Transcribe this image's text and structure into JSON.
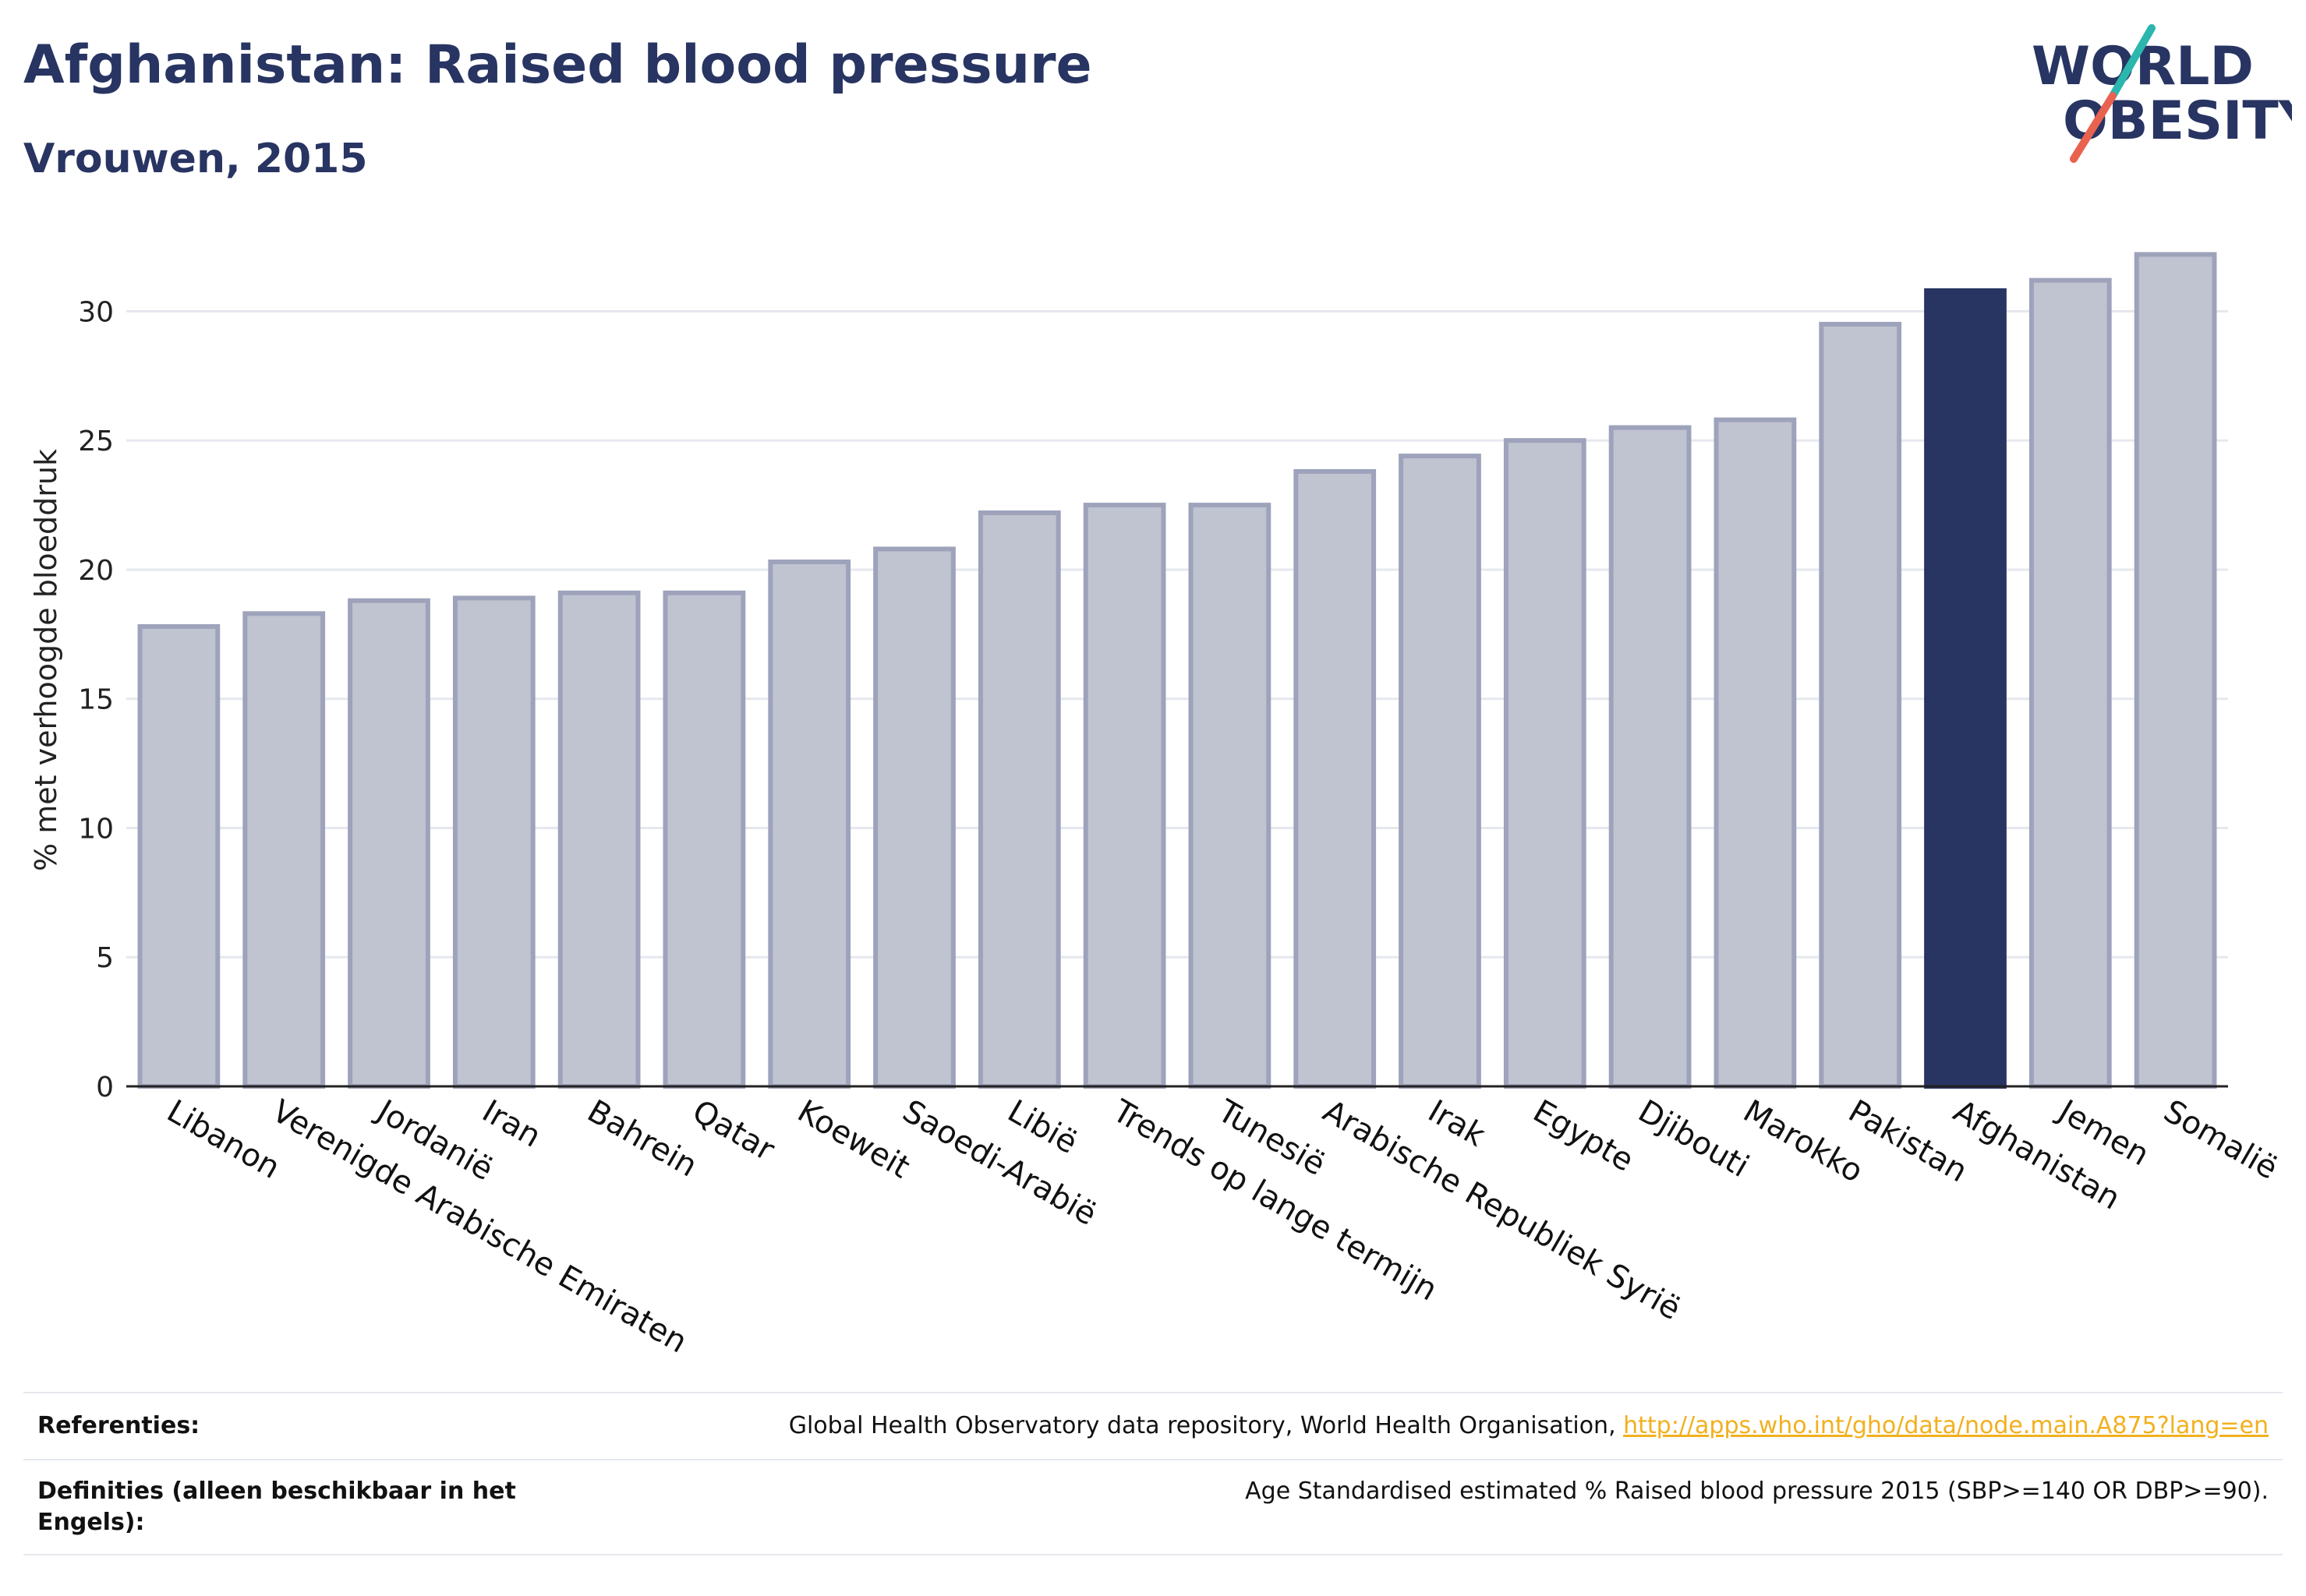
{
  "header": {
    "title": "Afghanistan: Raised blood pressure",
    "subtitle": "Vrouwen, 2015"
  },
  "logo": {
    "line1": "WORLD",
    "line2": "OBESITY",
    "colors": {
      "text": "#283462",
      "slash_top": "#2bb6ae",
      "slash_bottom": "#e8624f"
    }
  },
  "chart_data": {
    "type": "bar",
    "ylabel": "% met verhoogde bloeddruk",
    "xlabel": "",
    "ylim": [
      0,
      33
    ],
    "yticks": [
      0,
      5,
      10,
      15,
      20,
      25,
      30
    ],
    "grid": true,
    "highlight": "Afghanistan",
    "colors": {
      "bar": "#c0c3d0",
      "bar_edge": "#9ea3bb",
      "highlight": "#283462",
      "grid": "#e6e8ef",
      "axis": "#222222"
    },
    "categories": [
      "Libanon",
      "Verenigde Arabische Emiraten",
      "Jordanië",
      "Iran",
      "Bahrein",
      "Qatar",
      "Koeweit",
      "Saoedi-Arabië",
      "Libië",
      "Trends op lange termijn",
      "Tunesië",
      "Arabische Republiek Syrië",
      "Irak",
      "Egypte",
      "Djibouti",
      "Marokko",
      "Pakistan",
      "Afghanistan",
      "Jemen",
      "Somalië"
    ],
    "values": [
      17.8,
      18.3,
      18.8,
      18.9,
      19.1,
      19.1,
      20.3,
      20.8,
      22.2,
      22.5,
      22.5,
      23.8,
      24.4,
      25.0,
      25.5,
      25.8,
      29.5,
      30.8,
      31.2,
      32.2
    ]
  },
  "footer": {
    "references_label": "Referenties:",
    "references_text": "Global Health Observatory data repository, World Health Organisation, ",
    "references_link": "http://apps.who.int/gho/data/node.main.A875?lang=en",
    "definitions_label_line1": "Definities (alleen beschikbaar in het",
    "definitions_label_line2": "Engels):",
    "definitions_text": "Age Standardised estimated % Raised blood pressure 2015 (SBP>=140 OR DBP>=90)."
  }
}
